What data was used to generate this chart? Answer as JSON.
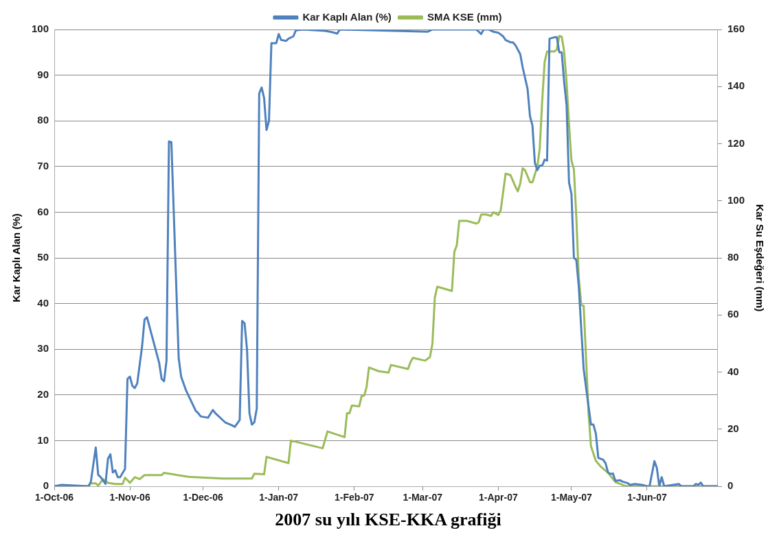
{
  "chart_data": {
    "type": "line",
    "title": "2007 su yılı KSE-KKA grafiği",
    "ylabel": "Kar Kaplı Alan (%)",
    "y2label": "Kar Su Eşdeğeri (mm)",
    "xlim": [
      "2006-10-01",
      "2007-06-30"
    ],
    "xticks": [
      {
        "value": "2006-10-01",
        "label": "1-Oct-06"
      },
      {
        "value": "2006-11-01",
        "label": "1-Nov-06"
      },
      {
        "value": "2006-12-01",
        "label": "1-Dec-06"
      },
      {
        "value": "2007-01-01",
        "label": "1-Jan-07"
      },
      {
        "value": "2007-02-01",
        "label": "1-Feb-07"
      },
      {
        "value": "2007-03-01",
        "label": "1-Mar-07"
      },
      {
        "value": "2007-04-01",
        "label": "1-Apr-07"
      },
      {
        "value": "2007-05-01",
        "label": "1-May-07"
      },
      {
        "value": "2007-06-01",
        "label": "1-Jun-07"
      }
    ],
    "ylim": [
      0,
      100
    ],
    "yticks": [
      0,
      10,
      20,
      30,
      40,
      50,
      60,
      70,
      80,
      90,
      100
    ],
    "y2lim": [
      0,
      160
    ],
    "y2ticks": [
      0,
      20,
      40,
      60,
      80,
      100,
      120,
      140,
      160
    ],
    "grid": "y",
    "legend": "top",
    "marker": "none",
    "line_style": "solid",
    "series": [
      {
        "name": "Kar Kaplı Alan (%)",
        "color": "#4f81bd",
        "x": [
          "2006-10-01",
          "2006-10-04",
          "2006-10-15",
          "2006-10-16",
          "2006-10-18",
          "2006-10-19",
          "2006-10-20",
          "2006-10-22",
          "2006-10-23",
          "2006-10-24",
          "2006-10-25",
          "2006-10-26",
          "2006-10-27",
          "2006-10-28",
          "2006-10-30",
          "2006-10-31",
          "2006-11-01",
          "2006-11-02",
          "2006-11-03",
          "2006-11-04",
          "2006-11-06",
          "2006-11-07",
          "2006-11-08",
          "2006-11-11",
          "2006-11-13",
          "2006-11-14",
          "2006-11-15",
          "2006-11-16",
          "2006-11-17",
          "2006-11-18",
          "2006-11-21",
          "2006-11-22",
          "2006-11-24",
          "2006-11-28",
          "2006-11-29",
          "2006-11-30",
          "2006-12-03",
          "2006-12-05",
          "2006-12-06",
          "2006-12-10",
          "2006-12-13",
          "2006-12-14",
          "2006-12-16",
          "2006-12-17",
          "2006-12-18",
          "2006-12-19",
          "2006-12-20",
          "2006-12-21",
          "2006-12-22",
          "2006-12-23",
          "2006-12-24",
          "2006-12-25",
          "2006-12-26",
          "2006-12-27",
          "2006-12-28",
          "2006-12-29",
          "2006-12-31",
          "2007-01-01",
          "2007-01-02",
          "2007-01-04",
          "2007-01-05",
          "2007-01-07",
          "2007-01-08",
          "2007-01-11",
          "2007-01-20",
          "2007-01-23",
          "2007-01-25",
          "2007-01-26",
          "2007-03-03",
          "2007-03-05",
          "2007-03-23",
          "2007-03-25",
          "2007-03-26",
          "2007-03-28",
          "2007-03-30",
          "2007-04-01",
          "2007-04-03",
          "2007-04-04",
          "2007-04-06",
          "2007-04-07",
          "2007-04-08",
          "2007-04-10",
          "2007-04-11",
          "2007-04-13",
          "2007-04-14",
          "2007-04-15",
          "2007-04-16",
          "2007-04-17",
          "2007-04-18",
          "2007-04-19",
          "2007-04-20",
          "2007-04-21",
          "2007-04-22",
          "2007-04-24",
          "2007-04-25",
          "2007-04-26",
          "2007-04-27",
          "2007-04-28",
          "2007-04-29",
          "2007-04-30",
          "2007-05-01",
          "2007-05-02",
          "2007-05-03",
          "2007-05-04",
          "2007-05-05",
          "2007-05-06",
          "2007-05-07",
          "2007-05-09",
          "2007-05-10",
          "2007-05-11",
          "2007-05-12",
          "2007-05-14",
          "2007-05-15",
          "2007-05-16",
          "2007-05-17",
          "2007-05-18",
          "2007-05-19",
          "2007-05-21",
          "2007-05-22",
          "2007-05-24",
          "2007-05-25",
          "2007-05-27",
          "2007-05-30",
          "2007-06-01",
          "2007-06-02",
          "2007-06-04",
          "2007-06-05",
          "2007-06-06",
          "2007-06-07",
          "2007-06-08",
          "2007-06-14",
          "2007-06-15",
          "2007-06-20",
          "2007-06-21",
          "2007-06-22",
          "2007-06-23",
          "2007-06-24",
          "2007-06-30"
        ],
        "values": [
          0,
          0.3,
          0,
          1,
          8.5,
          2.5,
          2,
          0.5,
          6,
          7,
          3,
          3.5,
          2,
          2,
          3.8,
          23.5,
          24,
          22,
          21.5,
          22.5,
          30.7,
          36.5,
          37,
          31,
          27,
          23.5,
          23,
          27.5,
          75.5,
          75.3,
          28,
          24,
          21,
          16.5,
          16,
          15.3,
          15,
          16.7,
          16,
          14,
          13.3,
          13,
          14.5,
          36.2,
          35.7,
          30,
          16,
          13.5,
          14,
          17,
          86,
          87.3,
          85,
          78,
          80,
          97,
          97,
          99,
          97.7,
          97.5,
          98,
          98.5,
          99.8,
          100,
          99.7,
          99.4,
          99.1,
          100,
          99.5,
          100,
          100,
          99,
          100,
          100,
          99.5,
          99.3,
          98.5,
          97.7,
          97.2,
          97.2,
          96.6,
          94.6,
          91.7,
          87,
          81,
          79,
          70.8,
          69.2,
          70.2,
          70.2,
          71.5,
          71.3,
          98,
          98.3,
          98.3,
          95,
          95,
          88.5,
          83.4,
          66.5,
          64,
          50,
          49.5,
          43.7,
          34.6,
          25.7,
          21.5,
          13.5,
          13.5,
          11.5,
          6.2,
          5.8,
          5,
          3,
          2.7,
          2.8,
          1.2,
          1.3,
          1,
          0.7,
          0.3,
          0.5,
          0.3,
          0,
          0,
          5.5,
          4,
          0,
          2,
          0,
          0.5,
          0,
          0,
          0.5,
          0.3,
          0.8,
          0,
          0
        ]
      },
      {
        "name": "SMA KSE (mm)",
        "color": "#9bbb59",
        "axis": "y2",
        "x": [
          "2006-10-01",
          "2006-10-15",
          "2006-10-16",
          "2006-10-18",
          "2006-10-19",
          "2006-10-21",
          "2006-10-23",
          "2006-10-26",
          "2006-10-29",
          "2006-10-30",
          "2006-11-01",
          "2006-11-03",
          "2006-11-05",
          "2006-11-07",
          "2006-11-14",
          "2006-11-15",
          "2006-11-25",
          "2006-12-02",
          "2006-12-09",
          "2006-12-21",
          "2006-12-22",
          "2006-12-26",
          "2006-12-27",
          "2007-01-03",
          "2007-01-05",
          "2007-01-06",
          "2007-01-19",
          "2007-01-21",
          "2007-01-28",
          "2007-01-29",
          "2007-01-30",
          "2007-01-31",
          "2007-02-03",
          "2007-02-04",
          "2007-02-05",
          "2007-02-06",
          "2007-02-07",
          "2007-02-11",
          "2007-02-15",
          "2007-02-16",
          "2007-02-23",
          "2007-02-24",
          "2007-02-25",
          "2007-03-02",
          "2007-03-04",
          "2007-03-05",
          "2007-03-06",
          "2007-03-07",
          "2007-03-13",
          "2007-03-14",
          "2007-03-15",
          "2007-03-16",
          "2007-03-18",
          "2007-03-19",
          "2007-03-23",
          "2007-03-24",
          "2007-03-25",
          "2007-03-27",
          "2007-03-29",
          "2007-03-30",
          "2007-04-01",
          "2007-04-02",
          "2007-04-04",
          "2007-04-06",
          "2007-04-08",
          "2007-04-09",
          "2007-04-10",
          "2007-04-11",
          "2007-04-12",
          "2007-04-14",
          "2007-04-15",
          "2007-04-17",
          "2007-04-18",
          "2007-04-19",
          "2007-04-20",
          "2007-04-21",
          "2007-04-24",
          "2007-04-25",
          "2007-04-26",
          "2007-04-27",
          "2007-04-28",
          "2007-04-29",
          "2007-04-30",
          "2007-05-01",
          "2007-05-02",
          "2007-05-03",
          "2007-05-04",
          "2007-05-05",
          "2007-05-06",
          "2007-05-07",
          "2007-05-08",
          "2007-05-09",
          "2007-05-11",
          "2007-05-13",
          "2007-05-16",
          "2007-05-19",
          "2007-05-23",
          "2007-05-25",
          "2007-06-30"
        ],
        "values": [
          0,
          0,
          1,
          1,
          0.2,
          2.5,
          1.2,
          0.8,
          0.8,
          3,
          1.2,
          3.2,
          2.5,
          3.9,
          3.9,
          4.7,
          3.3,
          3,
          2.7,
          2.7,
          4.4,
          4.2,
          10.3,
          8.6,
          8.1,
          16,
          13.3,
          19.2,
          17.2,
          25.6,
          25.6,
          28.3,
          28,
          31.7,
          31.7,
          34.7,
          41.6,
          40.3,
          39.8,
          42.5,
          41.1,
          43.5,
          45,
          44,
          45.3,
          49.9,
          66.2,
          69.9,
          68.4,
          82.2,
          84.4,
          93,
          93,
          93,
          92,
          92.5,
          95.2,
          95.2,
          94.7,
          96,
          95,
          96.7,
          109.5,
          109,
          105,
          103.3,
          106,
          111.4,
          110.7,
          106.5,
          106.5,
          112,
          118.3,
          135,
          148.6,
          152.3,
          152.3,
          153,
          157.7,
          157.5,
          152.3,
          141.5,
          126.7,
          114,
          111,
          94,
          73,
          63.5,
          63.2,
          44.5,
          25.6,
          14,
          8.9,
          6.9,
          4.7,
          1.5,
          0.1,
          0,
          0
        ]
      }
    ]
  }
}
